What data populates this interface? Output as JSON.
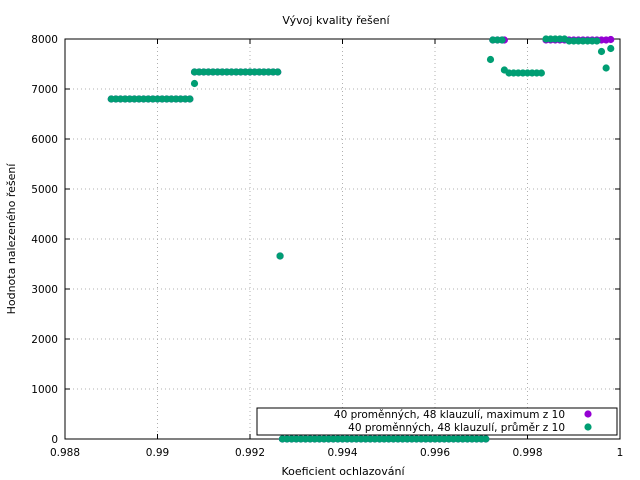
{
  "chart_data": {
    "type": "scatter",
    "title": "Vývoj kvality řešení",
    "xlabel": "Koeficient ochlazování",
    "ylabel": "Hodnota nalezeného řešení",
    "xlim": [
      0.988,
      1.0
    ],
    "ylim": [
      0,
      8000
    ],
    "xticks": [
      0.988,
      0.99,
      0.992,
      0.994,
      0.996,
      0.998,
      1.0
    ],
    "xtick_labels": [
      "0.988",
      "0.99",
      "0.992",
      "0.994",
      "0.996",
      "0.998",
      "1"
    ],
    "yticks": [
      0,
      1000,
      2000,
      3000,
      4000,
      5000,
      6000,
      7000,
      8000
    ],
    "ytick_labels": [
      "0",
      "1000",
      "2000",
      "3000",
      "4000",
      "5000",
      "6000",
      "7000",
      "8000"
    ],
    "grid": true,
    "legend_position": "bottom-right",
    "series": [
      {
        "name": "40 proměnných, 48 klauzulí, maximum z 10",
        "color": "#9400d3",
        "segments": [
          {
            "x_start": 0.989,
            "x_end": 0.9907,
            "y": 6800
          },
          {
            "x_start": 0.9908,
            "x_end": 0.9926,
            "y": 7340
          },
          {
            "x_start": 0.9927,
            "x_end": 0.9971,
            "y": 0
          },
          {
            "x_start": 0.99725,
            "x_end": 0.99745,
            "y": 7980
          },
          {
            "x_start": 0.9984,
            "x_end": 0.9996,
            "y": 7980
          }
        ],
        "points": [
          {
            "x": 0.99265,
            "y": 3660
          },
          {
            "x": 0.9975,
            "y": 7980
          },
          {
            "x": 0.9997,
            "y": 7980
          },
          {
            "x": 0.9998,
            "y": 7990
          }
        ]
      },
      {
        "name": "40 proměnných, 48 klauzulí, průměr z 10",
        "color": "#009e73",
        "segments": [
          {
            "x_start": 0.989,
            "x_end": 0.9907,
            "y": 6800
          },
          {
            "x_start": 0.9908,
            "x_end": 0.9926,
            "y": 7340
          },
          {
            "x_start": 0.9927,
            "x_end": 0.9971,
            "y": 0
          },
          {
            "x_start": 0.99725,
            "x_end": 0.99745,
            "y": 7980
          },
          {
            "x_start": 0.9976,
            "x_end": 0.9983,
            "y": 7320
          },
          {
            "x_start": 0.9984,
            "x_end": 0.9988,
            "y": 8000
          },
          {
            "x_start": 0.9989,
            "x_end": 0.9995,
            "y": 7960
          }
        ],
        "points": [
          {
            "x": 0.9908,
            "y": 7110
          },
          {
            "x": 0.99265,
            "y": 3660
          },
          {
            "x": 0.9972,
            "y": 7590
          },
          {
            "x": 0.9975,
            "y": 7380
          },
          {
            "x": 0.9996,
            "y": 7750
          },
          {
            "x": 0.9997,
            "y": 7420
          },
          {
            "x": 0.9998,
            "y": 7810
          }
        ]
      }
    ]
  }
}
